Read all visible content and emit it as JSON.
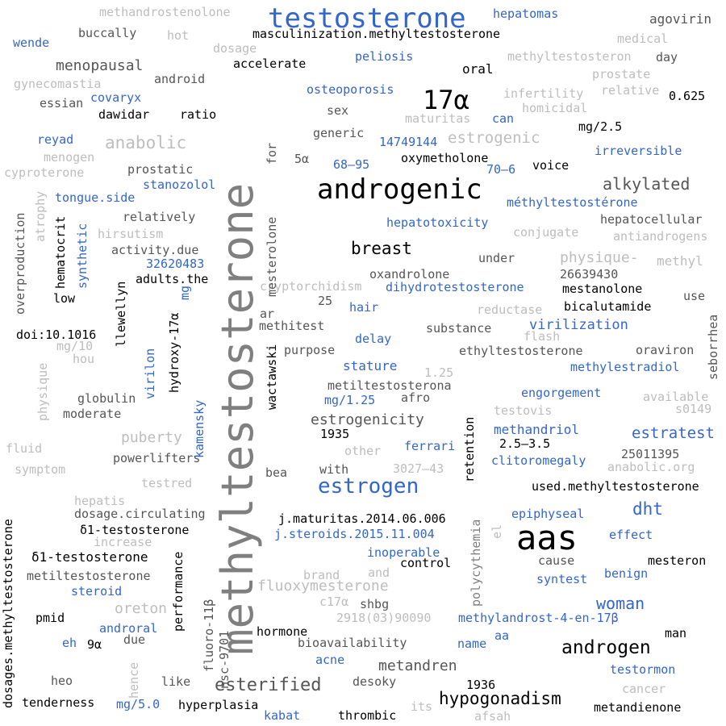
{
  "colors": {
    "black": "#000000",
    "dark_gray": "#555555",
    "gray": "#7f7f7f",
    "light_gray": "#bdbdbd",
    "blue": "#3366cc"
  },
  "words": [
    "methyltestosterone",
    "testosterone",
    "androgenic",
    "aas",
    "17α",
    "estrogen",
    "androgen",
    "breast",
    "hypogonadism",
    "alkylated",
    "esterified",
    "woman",
    "estratest",
    "dht",
    "masculinization.methyltestosterone",
    "methandrostenolone",
    "hepatomas",
    "agovirin",
    "buccally",
    "hot",
    "wende",
    "dosage",
    "medical",
    "menopausal",
    "accelerate",
    "peliosis",
    "oral",
    "methyltestosteron",
    "day",
    "android",
    "gynecomastia",
    "prostate",
    "essian",
    "covaryx",
    "relative",
    "0.625",
    "infertility",
    "osteoporosis",
    "dawidar",
    "ratio",
    "homicidal",
    "sex",
    "maturitas",
    "can",
    "mg/2.5",
    "reyad",
    "anabolic",
    "generic",
    "estrogenic",
    "14749144",
    "menogen",
    "5α",
    "oxymetholone",
    "irreversible",
    "cyproterone",
    "prostatic",
    "68–95",
    "70–6",
    "voice",
    "stanozolol",
    "tongue.side",
    "méthyltestostérone",
    "relatively",
    "hepatotoxicity",
    "hepatocellular",
    "hirsutism",
    "conjugate",
    "antiandrogens",
    "activity.due",
    "physique-",
    "methyl",
    "32620483",
    "oxandrolone",
    "under",
    "26639430",
    "adults.the",
    "cryptorchidism",
    "dihydrotestosterone",
    "mestanolone",
    "low",
    "hair",
    "reductase",
    "bicalutamide",
    "use",
    "25",
    "ar",
    "methitest",
    "virilization",
    "doi:10.1016",
    "substance",
    "flash",
    "delay",
    "purpose",
    "ethyltestosterone",
    "oraviron",
    "mg/10",
    "hou",
    "methylestradiol",
    "stature",
    "1.25",
    "metiltestosterona",
    "globulin",
    "afro",
    "engorgement",
    "available",
    "moderate",
    "mg/1.25",
    "testovis",
    "s0149",
    "estrogenicity",
    "methandriol",
    "1935",
    "puberty",
    "ferrari",
    "2.5–3.5",
    "fluid",
    "other",
    "25011395",
    "powerlifters",
    "symptom",
    "with",
    "3027–43",
    "clitoromegaly",
    "anabolic.org",
    "bea",
    "testred",
    "used.methyltestosterone",
    "hepatis",
    "j.maturitas.2014.06.006",
    "epiphyseal",
    "dosage.circulating",
    "j.steroids.2015.11.004",
    "increase",
    "effect",
    "δ1-testosterone",
    "inoperable",
    "cause",
    "mesteron",
    "control",
    "brand",
    "and",
    "benign",
    "metiltestosterone",
    "syntest",
    "steroid",
    "c17α",
    "shbg",
    "oreton",
    "fluoxymesterone",
    "pmid",
    "2918(03)90090",
    "methylandrost-4-en-17β",
    "androral",
    "hormone",
    "man",
    "eh",
    "9α",
    "due",
    "aa",
    "bioavailability",
    "name",
    "heo",
    "acne",
    "metandren",
    "testormon",
    "like",
    "desoky",
    "1936",
    "tenderness",
    "cancer",
    "mg/5.0",
    "hyperplasia",
    "its",
    "metandienone",
    "kabat",
    "thrombic",
    "afsah",
    "atrophy",
    "hematocrit",
    "synthetic",
    "overproduction",
    "llewellyn",
    "mg",
    "hydroxy-17α",
    "for",
    "mesterolone",
    "wactawski",
    "virilon",
    "physique",
    "kamensky",
    "seborrhea",
    "retention",
    "polycythemia",
    "el",
    "performance",
    "fluoro-11β",
    "nsc-9701",
    "hence",
    "dosages.methyltestosterone"
  ]
}
